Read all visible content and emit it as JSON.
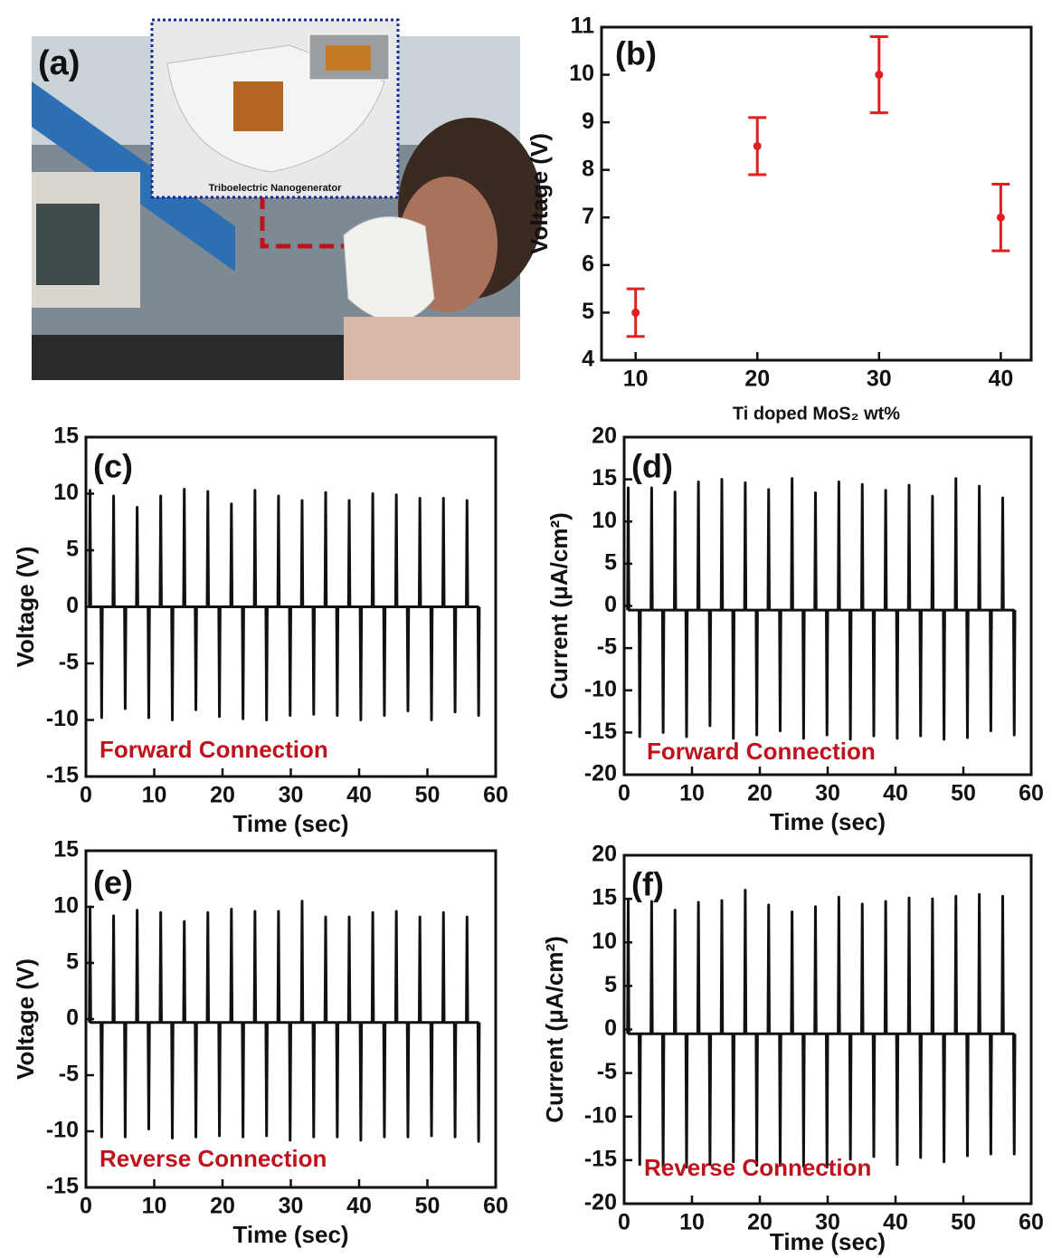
{
  "photo": {
    "label": "(a)",
    "caption": "Triboelectric Nanogenerator"
  },
  "chart_data": [
    {
      "type": "scatter",
      "panel_label": "(b)",
      "xlabel": "Ti doped MoS₂ wt%",
      "ylabel": "Voltage (V)",
      "color": "#e02020",
      "x": [
        10,
        20,
        30,
        40
      ],
      "values": [
        5,
        8.5,
        10,
        7
      ],
      "errors": [
        0.5,
        0.6,
        0.8,
        0.7
      ],
      "xlim": [
        7.2,
        42.5
      ],
      "xticks": [
        10,
        20,
        30,
        40
      ],
      "ylim": [
        4,
        11
      ],
      "yticks": [
        4,
        5,
        6,
        7,
        8,
        9,
        10,
        11
      ]
    },
    {
      "type": "line",
      "panel_label": "(c)",
      "xlabel": "Time (sec)",
      "ylabel": "Voltage (V)",
      "annotation": "Forward Connection",
      "color": "#111111",
      "x": [
        0.5,
        0.6,
        0.7,
        2.2,
        2.3,
        2.4,
        3.95,
        4.05,
        4.15,
        5.65,
        5.75,
        5.85,
        7.4,
        7.5,
        7.6,
        9.1,
        9.2,
        9.3,
        10.85,
        10.95,
        11.05,
        12.55,
        12.65,
        12.75,
        14.3,
        14.4,
        14.5,
        16,
        16.1,
        16.2,
        17.75,
        17.85,
        17.95,
        19.45,
        19.55,
        19.65,
        21.2,
        21.3,
        21.4,
        22.9,
        23,
        23.1,
        24.65,
        24.75,
        24.85,
        26.35,
        26.45,
        26.55,
        28.1,
        28.2,
        28.3,
        29.8,
        29.9,
        30,
        31.55,
        31.65,
        31.75,
        33.25,
        33.35,
        33.45,
        35,
        35.1,
        35.2,
        36.7,
        36.8,
        36.9,
        38.45,
        38.55,
        38.65,
        40.15,
        40.25,
        40.35,
        41.9,
        42,
        42.1,
        43.6,
        43.7,
        43.8,
        45.35,
        45.45,
        45.55,
        47.05,
        47.15,
        47.25,
        48.8,
        48.9,
        49,
        50.5,
        50.6,
        50.7,
        52.25,
        52.35,
        52.45,
        53.95,
        54.05,
        54.15,
        55.7,
        55.8,
        55.9,
        57.4,
        57.5,
        57.6
      ],
      "values": [
        0,
        10.3,
        0,
        0,
        -9.8,
        0,
        0,
        9.8,
        0,
        0,
        -9,
        0,
        0,
        8.8,
        0,
        0,
        -9.8,
        0,
        0,
        9.8,
        0,
        0,
        -10,
        0,
        0,
        10.4,
        0,
        0,
        -9.1,
        0,
        0,
        10.2,
        0,
        0,
        -9.7,
        0,
        0,
        9.1,
        0,
        0,
        -9.9,
        0,
        0,
        10.3,
        0,
        0,
        -10,
        0,
        0,
        9.8,
        0,
        0,
        -9.6,
        0,
        0,
        9.4,
        0,
        0,
        -9.5,
        0,
        0,
        10.1,
        0,
        0,
        -9.6,
        0,
        0,
        9.4,
        0,
        0,
        -10,
        0,
        0,
        10,
        0,
        0,
        -9.6,
        0,
        0,
        9.9,
        0,
        0,
        -9.2,
        0,
        0,
        9.6,
        0,
        0,
        -10,
        0,
        0,
        9.6,
        0,
        0,
        -9.3,
        0,
        0,
        9.4,
        0,
        0,
        -9.6,
        0
      ],
      "xlim": [
        0,
        60
      ],
      "xticks": [
        0,
        10,
        20,
        30,
        40,
        50,
        60
      ],
      "ylim": [
        -15,
        15
      ],
      "yticks": [
        -15,
        -10,
        -5,
        0,
        5,
        10,
        15
      ]
    },
    {
      "type": "line",
      "panel_label": "(d)",
      "xlabel": "Time (sec)",
      "ylabel": "Current (μA/cm²)",
      "annotation": "Forward Connection",
      "color": "#111111",
      "x": [
        0.5,
        0.6,
        0.7,
        2.2,
        2.3,
        2.4,
        3.95,
        4.05,
        4.15,
        5.65,
        5.75,
        5.85,
        7.4,
        7.5,
        7.6,
        9.1,
        9.2,
        9.3,
        10.85,
        10.95,
        11.05,
        12.55,
        12.65,
        12.75,
        14.3,
        14.4,
        14.5,
        16,
        16.1,
        16.2,
        17.75,
        17.85,
        17.95,
        19.45,
        19.55,
        19.65,
        21.2,
        21.3,
        21.4,
        22.9,
        23,
        23.1,
        24.65,
        24.75,
        24.85,
        26.35,
        26.45,
        26.55,
        28.1,
        28.2,
        28.3,
        29.8,
        29.9,
        30,
        31.55,
        31.65,
        31.75,
        33.25,
        33.35,
        33.45,
        35,
        35.1,
        35.2,
        36.7,
        36.8,
        36.9,
        38.45,
        38.55,
        38.65,
        40.15,
        40.25,
        40.35,
        41.9,
        42,
        42.1,
        43.6,
        43.7,
        43.8,
        45.35,
        45.45,
        45.55,
        47.05,
        47.15,
        47.25,
        48.8,
        48.9,
        49,
        50.5,
        50.6,
        50.7,
        52.25,
        52.35,
        52.45,
        53.95,
        54.05,
        54.15,
        55.7,
        55.8,
        55.9,
        57.4,
        57.5,
        57.6
      ],
      "values": [
        -0.5,
        14,
        -0.5,
        -0.5,
        -15.5,
        -0.5,
        -0.5,
        14,
        -0.5,
        -0.5,
        -15,
        -0.5,
        -0.5,
        13.5,
        -0.5,
        -0.5,
        -15.5,
        -0.5,
        -0.5,
        14.7,
        -0.5,
        -0.5,
        -14.2,
        -0.5,
        -0.5,
        15,
        -0.5,
        -0.5,
        -15.7,
        -0.5,
        -0.5,
        14.6,
        -0.5,
        -0.5,
        -15.3,
        -0.5,
        -0.5,
        13.8,
        -0.5,
        -0.5,
        -14.8,
        -0.5,
        -0.5,
        15.1,
        -0.5,
        -0.5,
        -15.7,
        -0.5,
        -0.5,
        13.4,
        -0.5,
        -0.5,
        -15.3,
        -0.5,
        -0.5,
        14.7,
        -0.5,
        -0.5,
        -15.8,
        -0.5,
        -0.5,
        14.4,
        -0.5,
        -0.5,
        -15.4,
        -0.5,
        -0.5,
        13.7,
        -0.5,
        -0.5,
        -15.7,
        -0.5,
        -0.5,
        14.3,
        -0.5,
        -0.5,
        -15.4,
        -0.5,
        -0.5,
        13,
        -0.5,
        -0.5,
        -15.8,
        -0.5,
        -0.5,
        15.1,
        -0.5,
        -0.5,
        -15.6,
        -0.5,
        -0.5,
        14.2,
        -0.5,
        -0.5,
        -14.8,
        -0.5,
        -0.5,
        12.8,
        -0.5,
        -0.5,
        -15.3,
        -0.5
      ],
      "xlim": [
        0,
        60
      ],
      "xticks": [
        0,
        10,
        20,
        30,
        40,
        50,
        60
      ],
      "ylim": [
        -20,
        20
      ],
      "yticks": [
        -20,
        -15,
        -10,
        -5,
        0,
        5,
        10,
        15,
        20
      ]
    },
    {
      "type": "line",
      "panel_label": "(e)",
      "xlabel": "Time (sec)",
      "ylabel": "Voltage (V)",
      "annotation": "Reverse Connection",
      "color": "#111111",
      "x": [
        0.5,
        0.6,
        0.7,
        2.2,
        2.3,
        2.4,
        3.95,
        4.05,
        4.15,
        5.65,
        5.75,
        5.85,
        7.4,
        7.5,
        7.6,
        9.1,
        9.2,
        9.3,
        10.85,
        10.95,
        11.05,
        12.55,
        12.65,
        12.75,
        14.3,
        14.4,
        14.5,
        16,
        16.1,
        16.2,
        17.75,
        17.85,
        17.95,
        19.45,
        19.55,
        19.65,
        21.2,
        21.3,
        21.4,
        22.9,
        23,
        23.1,
        24.65,
        24.75,
        24.85,
        26.35,
        26.45,
        26.55,
        28.1,
        28.2,
        28.3,
        29.8,
        29.9,
        30,
        31.55,
        31.65,
        31.75,
        33.25,
        33.35,
        33.45,
        35,
        35.1,
        35.2,
        36.7,
        36.8,
        36.9,
        38.45,
        38.55,
        38.65,
        40.15,
        40.25,
        40.35,
        41.9,
        42,
        42.1,
        43.6,
        43.7,
        43.8,
        45.35,
        45.45,
        45.55,
        47.05,
        47.15,
        47.25,
        48.8,
        48.9,
        49,
        50.5,
        50.6,
        50.7,
        52.25,
        52.35,
        52.45,
        53.95,
        54.05,
        54.15,
        55.7,
        55.8,
        55.9,
        57.4,
        57.5,
        57.6
      ],
      "values": [
        -0.3,
        10,
        -0.3,
        -0.3,
        -10.5,
        -0.3,
        -0.3,
        9.2,
        -0.3,
        -0.3,
        -10.5,
        -0.3,
        -0.3,
        9.7,
        -0.3,
        -0.3,
        -9.8,
        -0.3,
        -0.3,
        9.5,
        -0.3,
        -0.3,
        -10.6,
        -0.3,
        -0.3,
        8.7,
        -0.3,
        -0.3,
        -10.5,
        -0.3,
        -0.3,
        9.5,
        -0.3,
        -0.3,
        -10.4,
        -0.3,
        -0.3,
        9.8,
        -0.3,
        -0.3,
        -10.5,
        -0.3,
        -0.3,
        9.6,
        -0.3,
        -0.3,
        -10.4,
        -0.3,
        -0.3,
        9.6,
        -0.3,
        -0.3,
        -10.8,
        -0.3,
        -0.3,
        10.5,
        -0.3,
        -0.3,
        -10.5,
        -0.3,
        -0.3,
        9.1,
        -0.3,
        -0.3,
        -10.5,
        -0.3,
        -0.3,
        9.1,
        -0.3,
        -0.3,
        -10.8,
        -0.3,
        -0.3,
        9.5,
        -0.3,
        -0.3,
        -10.5,
        -0.3,
        -0.3,
        9.6,
        -0.3,
        -0.3,
        -10.5,
        -0.3,
        -0.3,
        9.1,
        -0.3,
        -0.3,
        -10.4,
        -0.3,
        -0.3,
        9.5,
        -0.3,
        -0.3,
        -10.5,
        -0.3,
        -0.3,
        9.1,
        -0.3,
        -0.3,
        -10.9,
        -0.3
      ],
      "xlim": [
        0,
        60
      ],
      "xticks": [
        0,
        10,
        20,
        30,
        40,
        50,
        60
      ],
      "ylim": [
        -15,
        15
      ],
      "yticks": [
        -15,
        -10,
        -5,
        0,
        5,
        10,
        15
      ]
    },
    {
      "type": "line",
      "panel_label": "(f)",
      "xlabel": "Time (sec)",
      "ylabel": "Current (μA/cm²)",
      "annotation": "Reverse Connection",
      "color": "#111111",
      "x": [
        0.5,
        0.6,
        0.7,
        2.2,
        2.3,
        2.4,
        3.95,
        4.05,
        4.15,
        5.65,
        5.75,
        5.85,
        7.4,
        7.5,
        7.6,
        9.1,
        9.2,
        9.3,
        10.85,
        10.95,
        11.05,
        12.55,
        12.65,
        12.75,
        14.3,
        14.4,
        14.5,
        16,
        16.1,
        16.2,
        17.75,
        17.85,
        17.95,
        19.45,
        19.55,
        19.65,
        21.2,
        21.3,
        21.4,
        22.9,
        23,
        23.1,
        24.65,
        24.75,
        24.85,
        26.35,
        26.45,
        26.55,
        28.1,
        28.2,
        28.3,
        29.8,
        29.9,
        30,
        31.55,
        31.65,
        31.75,
        33.25,
        33.35,
        33.45,
        35,
        35.1,
        35.2,
        36.7,
        36.8,
        36.9,
        38.45,
        38.55,
        38.65,
        40.15,
        40.25,
        40.35,
        41.9,
        42,
        42.1,
        43.6,
        43.7,
        43.8,
        45.35,
        45.45,
        45.55,
        47.05,
        47.15,
        47.25,
        48.8,
        48.9,
        49,
        50.5,
        50.6,
        50.7,
        52.25,
        52.35,
        52.45,
        53.95,
        54.05,
        54.15,
        55.7,
        55.8,
        55.9,
        57.4,
        57.5,
        57.6
      ],
      "values": [
        -0.5,
        14.8,
        -0.5,
        -0.5,
        -15.5,
        -0.5,
        -0.5,
        14.7,
        -0.5,
        -0.5,
        -15.8,
        -0.5,
        -0.5,
        13.7,
        -0.5,
        -0.5,
        -15.8,
        -0.5,
        -0.5,
        14.6,
        -0.5,
        -0.5,
        -15.5,
        -0.5,
        -0.5,
        14.8,
        -0.5,
        -0.5,
        -15.2,
        -0.5,
        -0.5,
        16,
        -0.5,
        -0.5,
        -15.6,
        -0.5,
        -0.5,
        14.3,
        -0.5,
        -0.5,
        -15.6,
        -0.5,
        -0.5,
        13.5,
        -0.5,
        -0.5,
        -15.7,
        -0.5,
        -0.5,
        14.1,
        -0.5,
        -0.5,
        -15.8,
        -0.5,
        -0.5,
        15.2,
        -0.5,
        -0.5,
        -14.9,
        -0.5,
        -0.5,
        14.4,
        -0.5,
        -0.5,
        -14.6,
        -0.5,
        -0.5,
        14.7,
        -0.5,
        -0.5,
        -15.5,
        -0.5,
        -0.5,
        15.1,
        -0.5,
        -0.5,
        -14.7,
        -0.5,
        -0.5,
        15,
        -0.5,
        -0.5,
        -15.2,
        -0.5,
        -0.5,
        15.3,
        -0.5,
        -0.5,
        -14.5,
        -0.5,
        -0.5,
        15.5,
        -0.5,
        -0.5,
        -14.3,
        -0.5,
        -0.5,
        15.3,
        -0.5,
        -0.5,
        -14.3,
        -0.5
      ],
      "xlim": [
        0,
        60
      ],
      "xticks": [
        0,
        10,
        20,
        30,
        40,
        50,
        60
      ],
      "ylim": [
        -20,
        20
      ],
      "yticks": [
        -20,
        -15,
        -10,
        -5,
        0,
        5,
        10,
        15,
        20
      ]
    }
  ]
}
